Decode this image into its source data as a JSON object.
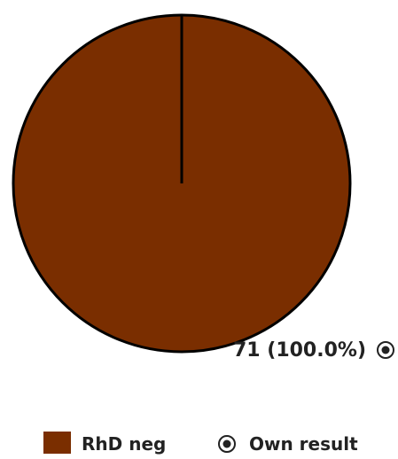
{
  "chart_data": {
    "type": "pie",
    "slices": [
      {
        "label": "RhD neg",
        "value": 71,
        "percent": 100.0,
        "color": "#7a2e00",
        "own_result": true
      }
    ],
    "data_label": "71 (100.0%)",
    "legend": {
      "placement": "bottom",
      "items": [
        {
          "label": "RhD neg",
          "symbol": "swatch",
          "color": "#7a2e00"
        },
        {
          "label": "Own result",
          "symbol": "own-result-marker-icon"
        }
      ]
    }
  }
}
